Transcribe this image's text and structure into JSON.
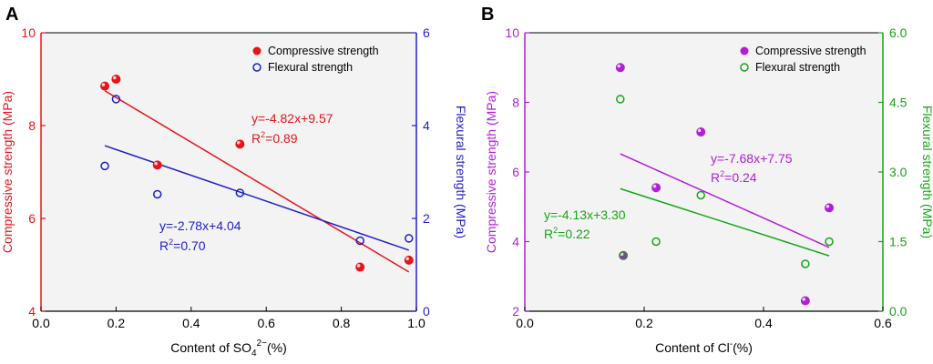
{
  "chart_data": [
    {
      "panel_label": "A",
      "type": "scatter",
      "xlabel_main": "Content of SO",
      "xlabel_sub": "4",
      "xlabel_sup": "2−",
      "xlabel_tail": "(%)",
      "xlim": [
        0.0,
        1.0
      ],
      "xticks": [
        "0.0",
        "0.2",
        "0.4",
        "0.6",
        "0.8",
        "1.0"
      ],
      "y_left": {
        "label": "Compressive strength (MPa)",
        "lim": [
          4,
          10
        ],
        "ticks": [
          "4",
          "6",
          "8",
          "10"
        ],
        "color": "#e8141b"
      },
      "y_right": {
        "label": "Flexural strength (MPa)",
        "lim": [
          0,
          6
        ],
        "ticks": [
          "0",
          "2",
          "4",
          "6"
        ],
        "color": "#1f1fc8"
      },
      "series": [
        {
          "name": "Compressive strength",
          "axis": "left",
          "marker": "filled",
          "color": "#e8141b",
          "x": [
            0.17,
            0.2,
            0.31,
            0.53,
            0.85,
            0.98
          ],
          "y": [
            8.85,
            9.0,
            7.15,
            7.6,
            4.95,
            5.1
          ],
          "fit": {
            "slope": -4.82,
            "intercept": 9.57,
            "x_range": [
              0.17,
              0.98
            ],
            "equation": "y=-4.82x+9.57",
            "r2_prefix": "R",
            "r2_sup": "2",
            "r2_value": "=0.89"
          }
        },
        {
          "name": "Flexural strength",
          "axis": "right",
          "marker": "open",
          "color": "#1f1fc8",
          "x": [
            0.17,
            0.2,
            0.31,
            0.53,
            0.85,
            0.98
          ],
          "y": [
            3.13,
            4.57,
            2.52,
            2.55,
            1.52,
            1.57
          ],
          "fit": {
            "slope": -2.78,
            "intercept": 4.04,
            "x_range": [
              0.17,
              0.98
            ],
            "equation": "y=-2.78x+4.04",
            "r2_prefix": "R",
            "r2_sup": "2",
            "r2_value": "=0.70"
          }
        }
      ],
      "legend": [
        "Compressive strength",
        "Flexural strength"
      ]
    },
    {
      "panel_label": "B",
      "type": "scatter",
      "xlabel_main": "Content of Cl",
      "xlabel_sub": "",
      "xlabel_sup": "-",
      "xlabel_tail": "(%)",
      "xlim": [
        0.0,
        0.6
      ],
      "xticks": [
        "0.0",
        "0.2",
        "0.4",
        "0.6"
      ],
      "y_left": {
        "label": "Compressive strength (MPa)",
        "lim": [
          2,
          10
        ],
        "ticks": [
          "2",
          "4",
          "6",
          "8",
          "10"
        ],
        "color": "#b21ed8"
      },
      "y_right": {
        "label": "Flexural strength (MPa)",
        "lim": [
          0,
          6
        ],
        "ticks": [
          "0.0",
          "1.5",
          "3.0",
          "4.5",
          "6.0"
        ],
        "color": "#16a616"
      },
      "series": [
        {
          "name": "Compressive strength",
          "axis": "left",
          "marker": "filled",
          "color": "#b21ed8",
          "x": [
            0.16,
            0.165,
            0.22,
            0.295,
            0.47,
            0.51
          ],
          "y": [
            9.0,
            3.6,
            5.55,
            7.15,
            2.3,
            4.97
          ],
          "fit": {
            "slope": -7.68,
            "intercept": 7.75,
            "x_range": [
              0.16,
              0.51
            ],
            "equation": "y=-7.68x+7.75",
            "r2_prefix": "R",
            "r2_sup": "2",
            "r2_value": "=0.24"
          }
        },
        {
          "name": "Flexural strength",
          "axis": "right",
          "marker": "open",
          "color": "#16a616",
          "x": [
            0.16,
            0.165,
            0.22,
            0.295,
            0.47,
            0.51
          ],
          "y": [
            4.57,
            1.2,
            1.5,
            2.5,
            1.02,
            1.5
          ],
          "fit": {
            "slope": -4.13,
            "intercept": 3.3,
            "x_range": [
              0.16,
              0.51
            ],
            "equation": "y=-4.13x+3.30",
            "r2_prefix": "R",
            "r2_sup": "2",
            "r2_value": "=0.22"
          }
        }
      ],
      "legend": [
        "Compressive strength",
        "Flexural strength"
      ]
    }
  ]
}
